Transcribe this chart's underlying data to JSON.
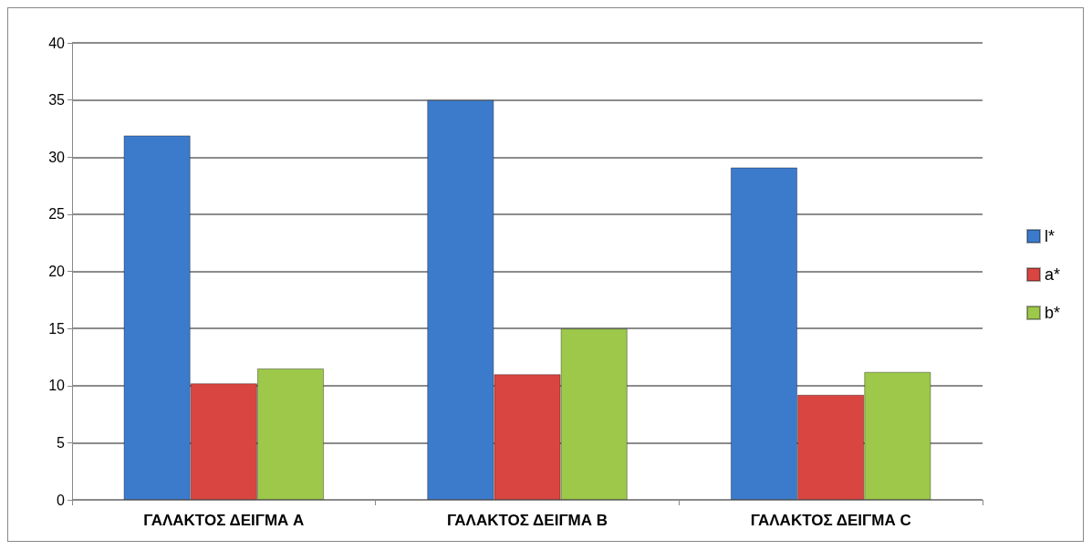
{
  "chart_data": {
    "type": "bar",
    "categories": [
      "ΓΑΛΑΚΤΟΣ ΔΕΙΓΜΑ A",
      "ΓΑΛΑΚΤΟΣ ΔΕΙΓΜΑ B",
      "ΓΑΛΑΚΤΟΣ ΔΕΙΓΜΑ C"
    ],
    "series": [
      {
        "name": "l*",
        "color": "#3c7bcc",
        "values": [
          31.9,
          35,
          29.1
        ]
      },
      {
        "name": "a*",
        "color": "#d94541",
        "values": [
          10.2,
          11.0,
          9.2
        ]
      },
      {
        "name": "b*",
        "color": "#9dc84a",
        "values": [
          11.5,
          15,
          11.2
        ]
      }
    ],
    "ylim": [
      0,
      40
    ],
    "yticks": [
      0,
      5,
      10,
      15,
      20,
      25,
      30,
      35,
      40
    ],
    "grid": "y",
    "legend": "right"
  }
}
